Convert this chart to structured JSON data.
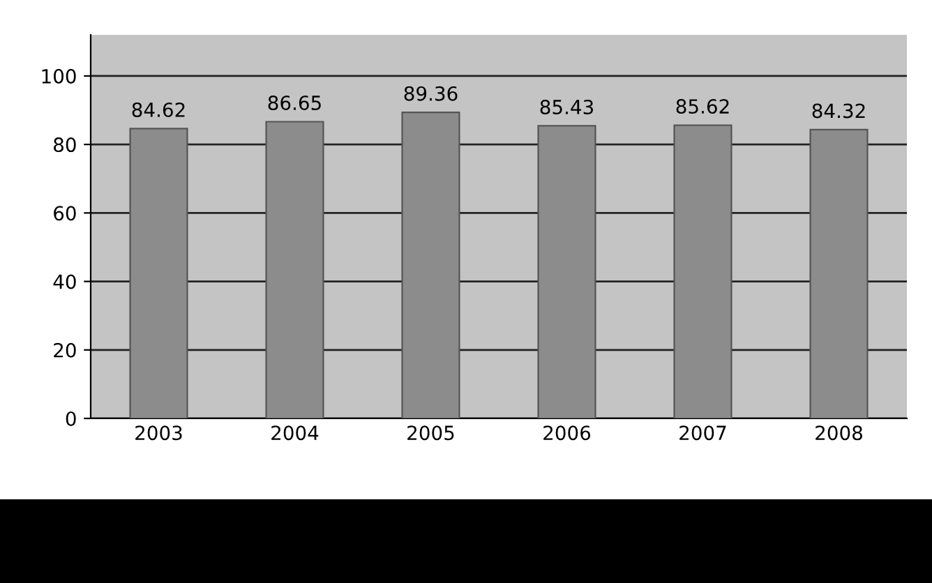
{
  "chart_data": {
    "type": "bar",
    "categories": [
      "2003",
      "2004",
      "2005",
      "2006",
      "2007",
      "2008"
    ],
    "values": [
      84.62,
      86.65,
      89.36,
      85.43,
      85.62,
      84.32
    ],
    "color": "#8c8c8c",
    "ylim": [
      0,
      112
    ],
    "yticks": [
      0,
      20,
      40,
      60,
      80,
      100
    ],
    "grid": "y",
    "data_labels": true
  }
}
